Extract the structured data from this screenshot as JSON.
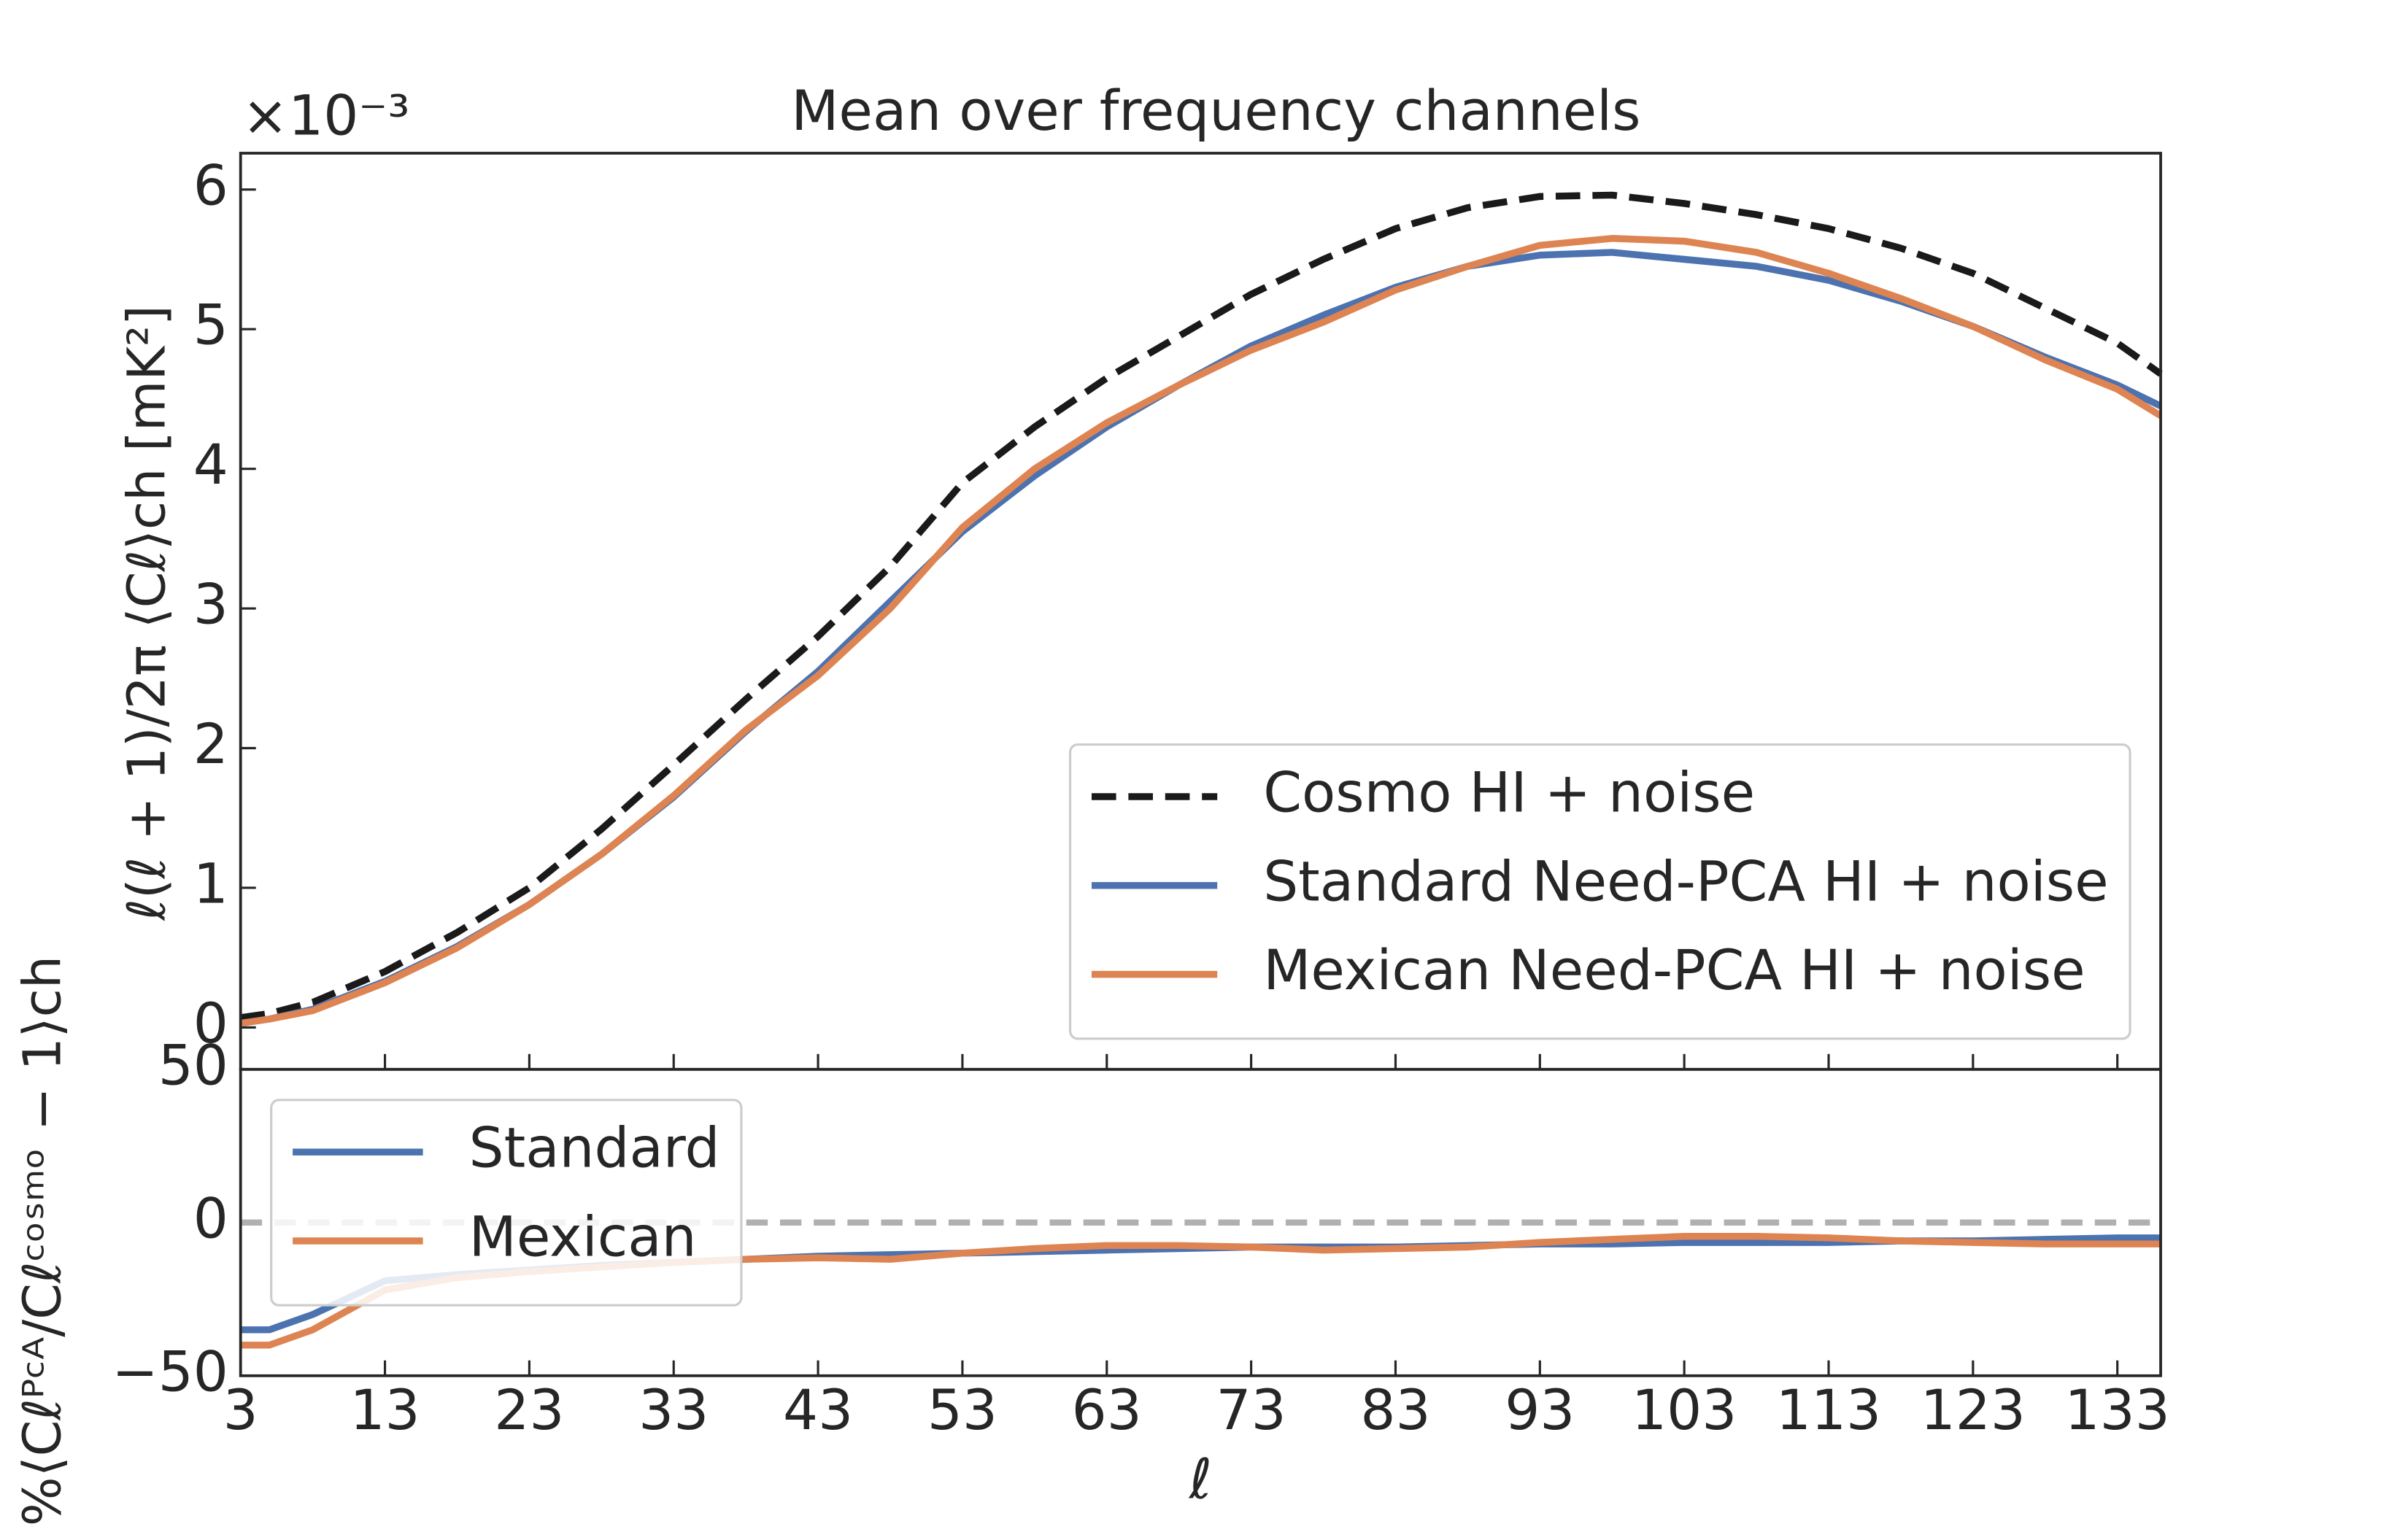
{
  "chart_data": [
    {
      "type": "line",
      "title": "Mean over frequency channels",
      "offset_text": "×10⁻³",
      "y_label": "ℓ(ℓ + 1)/2π ⟨Cℓ⟩ch [mK²]",
      "x": [
        3,
        5,
        8,
        13,
        18,
        23,
        28,
        33,
        38,
        43,
        48,
        53,
        58,
        63,
        68,
        73,
        78,
        83,
        88,
        93,
        98,
        103,
        108,
        113,
        118,
        123,
        128,
        133,
        136
      ],
      "series": [
        {
          "name": "Cosmo HI + noise",
          "color": "#1a1a1a",
          "dashed": true,
          "values": [
            0.07,
            0.1,
            0.18,
            0.4,
            0.68,
            1.0,
            1.42,
            1.88,
            2.35,
            2.8,
            3.3,
            3.9,
            4.3,
            4.65,
            4.95,
            5.25,
            5.5,
            5.72,
            5.87,
            5.95,
            5.96,
            5.9,
            5.82,
            5.72,
            5.58,
            5.4,
            5.15,
            4.9,
            4.68
          ]
        },
        {
          "name": "Standard Need-PCA HI + noise",
          "color": "#4c72b0",
          "values": [
            0.03,
            0.06,
            0.13,
            0.33,
            0.58,
            0.88,
            1.24,
            1.65,
            2.12,
            2.55,
            3.05,
            3.55,
            3.95,
            4.3,
            4.6,
            4.88,
            5.1,
            5.3,
            5.45,
            5.53,
            5.55,
            5.5,
            5.45,
            5.35,
            5.2,
            5.02,
            4.8,
            4.6,
            4.45
          ]
        },
        {
          "name": "Mexican Need-PCA HI + noise",
          "color": "#dd8452",
          "values": [
            0.03,
            0.06,
            0.12,
            0.32,
            0.57,
            0.88,
            1.24,
            1.66,
            2.13,
            2.52,
            3.0,
            3.58,
            4.0,
            4.33,
            4.6,
            4.85,
            5.05,
            5.28,
            5.45,
            5.6,
            5.65,
            5.63,
            5.55,
            5.4,
            5.22,
            5.02,
            4.78,
            4.57,
            4.38
          ]
        }
      ],
      "xlim": [
        3,
        136
      ],
      "xticks": [
        3,
        13,
        23,
        33,
        43,
        53,
        63,
        73,
        83,
        93,
        103,
        113,
        123,
        133
      ],
      "xticklabels": false,
      "ylim": [
        -0.3,
        6.26
      ],
      "yticks": [
        0,
        1,
        2,
        3,
        4,
        5,
        6
      ],
      "legend": "lower right"
    },
    {
      "type": "line",
      "x_label": "ℓ",
      "y_label": "%⟨Cℓᴾᶜᴬ/Cℓᶜᵒˢᵐᵒ − 1⟩ch",
      "x": [
        3,
        5,
        8,
        13,
        18,
        23,
        28,
        33,
        38,
        43,
        48,
        53,
        58,
        63,
        68,
        73,
        78,
        83,
        88,
        93,
        98,
        103,
        108,
        113,
        118,
        123,
        128,
        133,
        136
      ],
      "series": [
        {
          "name": "Standard",
          "color": "#4c72b0",
          "values": [
            -35,
            -35,
            -30,
            -19,
            -17,
            -15.5,
            -14,
            -13,
            -12,
            -11,
            -10.5,
            -10,
            -9.5,
            -9,
            -8.5,
            -8,
            -8,
            -8,
            -7.5,
            -7,
            -7,
            -6.5,
            -6.5,
            -6.5,
            -6,
            -6,
            -5.5,
            -5,
            -5
          ]
        },
        {
          "name": "Mexican",
          "color": "#dd8452",
          "values": [
            -40,
            -40,
            -35,
            -22,
            -18,
            -16,
            -14.5,
            -13,
            -12,
            -11.5,
            -12,
            -10,
            -8.5,
            -7.5,
            -7.5,
            -8,
            -9,
            -8.5,
            -8,
            -6.5,
            -5.5,
            -4.5,
            -4.5,
            -5,
            -6,
            -6.5,
            -7,
            -7,
            -7
          ]
        }
      ],
      "hline": 0,
      "hline_color": "#b0b0b0",
      "xlim": [
        3,
        136
      ],
      "xticks": [
        3,
        13,
        23,
        33,
        43,
        53,
        63,
        73,
        83,
        93,
        103,
        113,
        123,
        133
      ],
      "xticklabels": true,
      "ylim": [
        -50,
        50
      ],
      "yticks": [
        {
          "value": -50,
          "label": "−50"
        },
        0,
        50
      ],
      "legend": "upper left"
    }
  ]
}
